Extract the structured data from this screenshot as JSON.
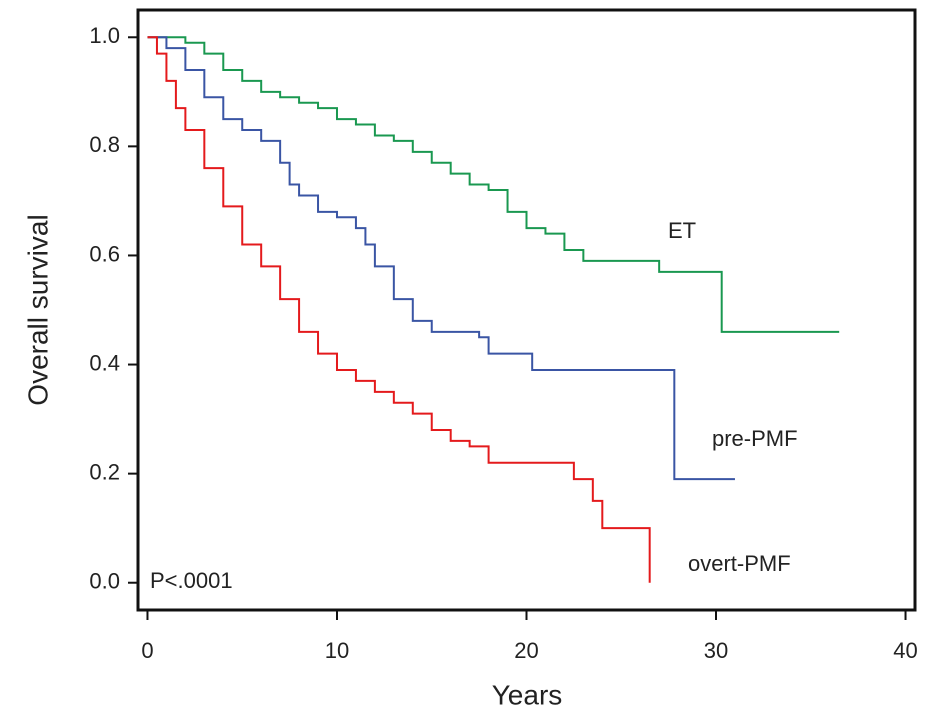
{
  "chart_data": {
    "type": "step",
    "xlabel": "Years",
    "ylabel": "Overall survival",
    "annotation": "P<.0001",
    "xlim": [
      -0.5,
      40.5
    ],
    "ylim": [
      -0.05,
      1.05
    ],
    "xticks": [
      0,
      10,
      20,
      30,
      40
    ],
    "yticks": [
      {
        "value": 0,
        "label": "0.0"
      },
      0.2,
      0.4,
      0.6,
      0.8,
      {
        "value": 1,
        "label": "1.0"
      }
    ],
    "series": [
      {
        "name": "ET",
        "color": "#1a9850",
        "x": [
          0,
          2,
          3,
          4,
          5,
          6,
          7,
          8,
          9,
          10,
          11,
          12,
          13,
          14,
          15,
          16,
          17,
          18,
          19,
          20,
          21,
          22,
          23,
          26,
          27,
          30.3,
          30.3,
          36.5
        ],
        "values": [
          1.0,
          0.99,
          0.97,
          0.94,
          0.92,
          0.9,
          0.89,
          0.88,
          0.87,
          0.85,
          0.84,
          0.82,
          0.81,
          0.79,
          0.77,
          0.75,
          0.73,
          0.72,
          0.68,
          0.65,
          0.64,
          0.61,
          0.59,
          0.59,
          0.57,
          0.57,
          0.46,
          0.46
        ]
      },
      {
        "name": "pre-PMF",
        "color": "#3a55a4",
        "x": [
          0,
          1,
          2,
          3,
          4,
          5,
          6,
          7,
          7.5,
          8,
          9,
          10,
          11,
          11.5,
          12,
          13,
          14,
          15,
          17.5,
          18,
          20,
          20.3,
          27.8,
          27.8,
          31
        ],
        "values": [
          1.0,
          0.98,
          0.94,
          0.89,
          0.85,
          0.83,
          0.81,
          0.77,
          0.73,
          0.71,
          0.68,
          0.67,
          0.65,
          0.62,
          0.58,
          0.52,
          0.48,
          0.46,
          0.45,
          0.42,
          0.42,
          0.39,
          0.39,
          0.19,
          0.19
        ]
      },
      {
        "name": "overt-PMF",
        "color": "#e41a1c",
        "x": [
          0,
          0.5,
          1,
          1.5,
          2,
          3,
          4,
          5,
          6,
          7,
          8,
          9,
          10,
          11,
          12,
          13,
          14,
          15,
          16,
          17,
          18,
          22,
          22.5,
          23.5,
          24,
          26.5,
          26.5
        ],
        "values": [
          1.0,
          0.97,
          0.92,
          0.87,
          0.83,
          0.76,
          0.69,
          0.62,
          0.58,
          0.52,
          0.46,
          0.42,
          0.39,
          0.37,
          0.35,
          0.33,
          0.31,
          0.28,
          0.26,
          0.25,
          0.22,
          0.22,
          0.19,
          0.15,
          0.1,
          0.1,
          0.0
        ]
      }
    ]
  }
}
